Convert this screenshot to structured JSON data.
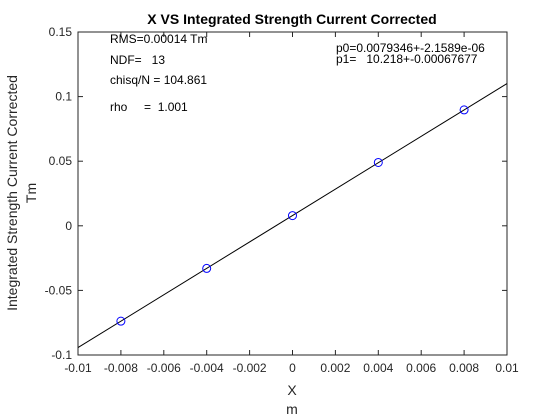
{
  "chart_data": {
    "type": "scatter",
    "title": "X VS Integrated Strength Current Corrected",
    "xlabel": "X",
    "xunit": "m",
    "ylabel": "Integrated Strength Current Corrected",
    "yunit": "Tm",
    "xlim": [
      -0.01,
      0.01
    ],
    "ylim": [
      -0.1,
      0.15
    ],
    "xticks": [
      -0.01,
      -0.008,
      -0.006,
      -0.004,
      -0.002,
      0,
      0.002,
      0.004,
      0.006,
      0.008,
      0.01
    ],
    "xtick_labels": [
      "-0.01",
      "-0.008",
      "-0.006",
      "-0.004",
      "-0.002",
      "0",
      "0.002",
      "0.004",
      "0.006",
      "0.008",
      "0.01"
    ],
    "yticks": [
      -0.1,
      -0.05,
      0,
      0.05,
      0.1,
      0.15
    ],
    "ytick_labels": [
      "-0.1",
      "-0.05",
      "0",
      "0.05",
      "0.1",
      "0.15"
    ],
    "grid": false,
    "marker_color": "#0000ff",
    "fit_color": "#000000",
    "series": [
      {
        "x": [
          -0.008,
          -0.004,
          0,
          0.004,
          0.008
        ],
        "y": [
          -0.0738,
          -0.033,
          0.0079,
          0.049,
          0.0897
        ]
      }
    ],
    "fit": {
      "p0": 0.0079346,
      "p1": 10.218
    },
    "annotations": {
      "rms": "RMS=0.00014 Tm",
      "ndf": "NDF=   13",
      "chisq": "chisq/N = 104.861",
      "rho": "rho     =  1.001",
      "p0": "p0=0.0079346+-2.1589e-06",
      "p1": "p1=   10.218+-0.00067677"
    }
  }
}
